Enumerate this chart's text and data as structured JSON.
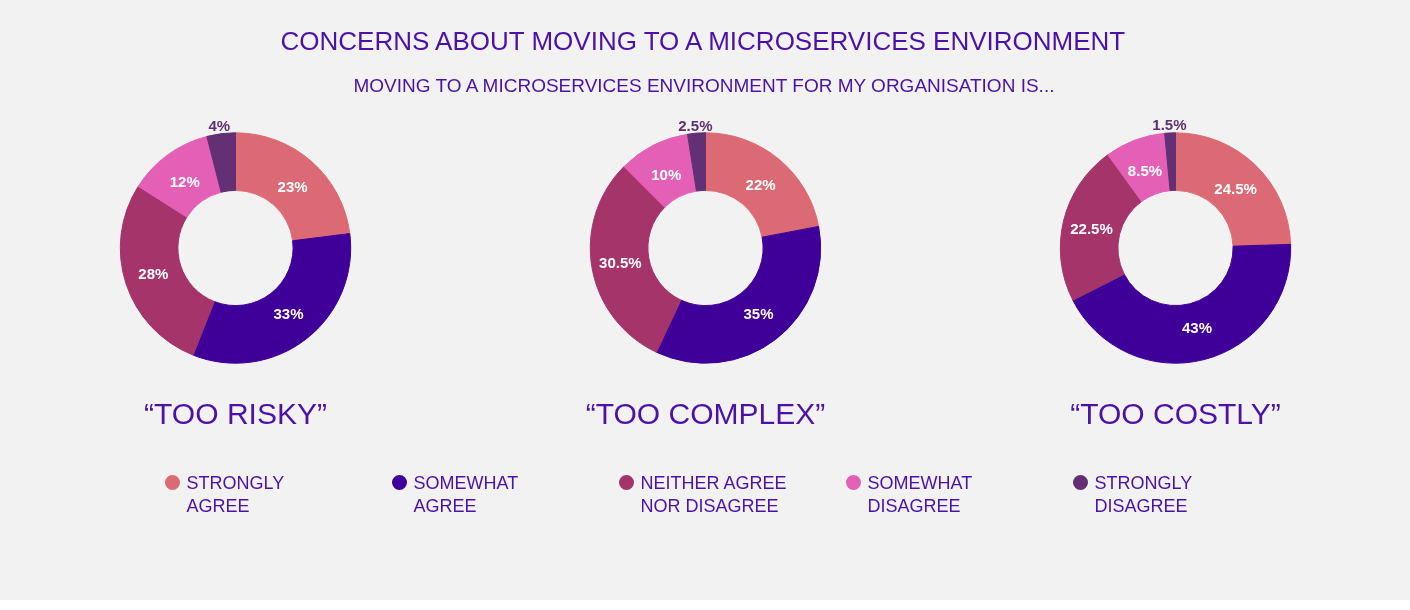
{
  "chart_data": [
    {
      "type": "donut",
      "title": "“TOO RISKY”",
      "annotations": [
        "CONCERNS ABOUT MOVING TO A MICROSERVICES ENVIRONMENT",
        "MOVING TO A MICROSERVICES ENVIRONMENT FOR MY ORGANISATION IS..."
      ],
      "legend": "bottom",
      "categories": [
        "STRONGLY AGREE",
        "SOMEWHAT AGREE",
        "NEITHER AGREE NOR DISAGREE",
        "SOMEWHAT DISAGREE",
        "STRONGLY DISAGREE"
      ],
      "values": [
        23,
        33,
        28,
        12,
        4
      ],
      "value_labels": [
        "23%",
        "33%",
        "28%",
        "12%",
        "4%"
      ],
      "colors": [
        "#dc6a74",
        "#3f0099",
        "#a4346a",
        "#e460b6",
        "#623073"
      ]
    },
    {
      "type": "donut",
      "title": "“TOO COMPLEX”",
      "values": [
        22,
        35,
        30.5,
        10,
        2.5
      ],
      "value_labels": [
        "22%",
        "35%",
        "30.5%",
        "10%",
        "2.5%"
      ],
      "colors": [
        "#dc6a74",
        "#3f0099",
        "#a4346a",
        "#e460b6",
        "#623073"
      ]
    },
    {
      "type": "donut",
      "title": "“TOO COSTLY”",
      "values": [
        24.5,
        43,
        22.5,
        8.5,
        1.5
      ],
      "value_labels": [
        "24.5%",
        "43%",
        "22.5%",
        "8.5%",
        "1.5%"
      ],
      "colors": [
        "#dc6a74",
        "#3f0099",
        "#a4346a",
        "#e460b6",
        "#623073"
      ]
    }
  ]
}
